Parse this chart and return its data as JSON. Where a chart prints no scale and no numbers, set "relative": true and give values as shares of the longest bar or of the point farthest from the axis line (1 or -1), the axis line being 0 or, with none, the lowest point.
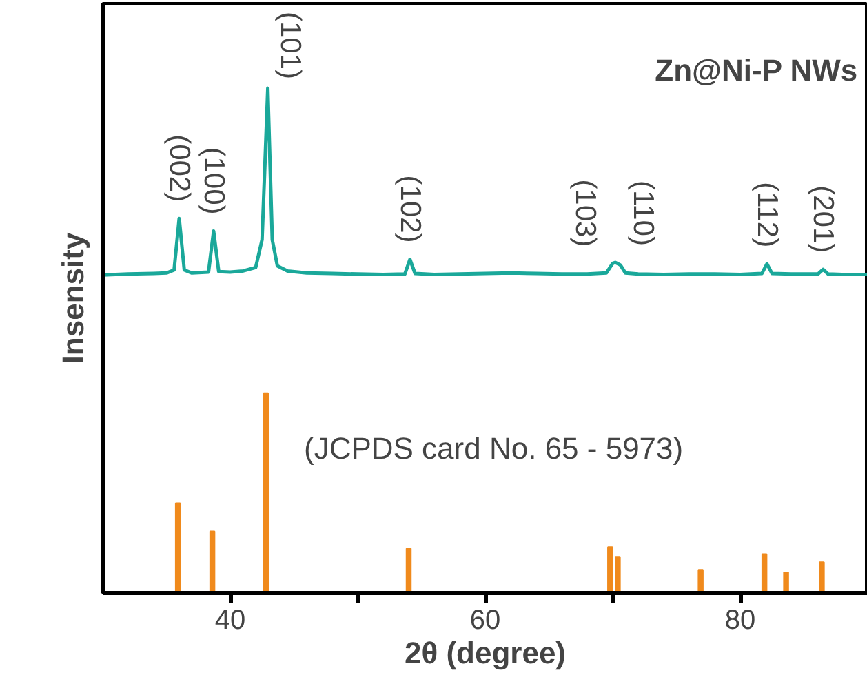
{
  "chart_data": {
    "type": "line",
    "title": "Zn@Ni-P NWs",
    "xlabel": "2θ (degree)",
    "ylabel": "Insensity",
    "relative": true,
    "xlim": [
      30,
      90
    ],
    "xticks": [
      40,
      {
        "value": 50,
        "label": null
      },
      60,
      {
        "value": 70,
        "label": null
      },
      80
    ],
    "grid": false,
    "tick_labels": "x",
    "series": [
      {
        "color": "#1aa89a",
        "x": [
          30,
          32,
          34,
          35,
          35.6,
          36.0,
          36.4,
          37,
          38.3,
          38.7,
          39.1,
          40,
          41,
          42.0,
          42.5,
          42.95,
          43.3,
          43.7,
          44.5,
          46,
          48,
          50,
          52,
          53.7,
          54.1,
          54.5,
          56,
          58,
          60,
          62,
          64,
          66,
          68,
          69.5,
          70.0,
          70.2,
          70.6,
          71.0,
          72,
          74,
          76,
          78,
          80,
          81.7,
          82.1,
          82.5,
          84,
          86.1,
          86.5,
          86.9,
          88,
          90
        ],
        "values": [
          0.63,
          0.632,
          0.633,
          0.634,
          0.64,
          0.742,
          0.64,
          0.634,
          0.636,
          0.717,
          0.637,
          0.636,
          0.638,
          0.645,
          0.7,
          1.0,
          0.7,
          0.648,
          0.638,
          0.634,
          0.633,
          0.632,
          0.631,
          0.632,
          0.661,
          0.633,
          0.631,
          0.632,
          0.633,
          0.634,
          0.633,
          0.632,
          0.632,
          0.634,
          0.653,
          0.655,
          0.65,
          0.634,
          0.632,
          0.631,
          0.632,
          0.632,
          0.631,
          0.633,
          0.652,
          0.633,
          0.632,
          0.632,
          0.641,
          0.632,
          0.631,
          0.631
        ]
      },
      {
        "type": "bar",
        "color": "#f08a1c",
        "x": [
          35.9,
          38.6,
          42.8,
          54.0,
          69.8,
          70.4,
          76.9,
          81.9,
          83.6,
          86.4
        ],
        "values": [
          0.178,
          0.122,
          0.396,
          0.088,
          0.091,
          0.072,
          0.046,
          0.077,
          0.041,
          0.061
        ]
      }
    ],
    "annotations": [
      {
        "text": "(002)",
        "x": 36.0,
        "y": 0.742
      },
      {
        "text": "(100)",
        "x": 38.7,
        "y": 0.717
      },
      {
        "text": "(101)",
        "x": 42.95,
        "y": 1.0
      },
      {
        "text": "(102)",
        "x": 54.1,
        "y": 0.661
      },
      {
        "text": "(103)",
        "x": 70.0,
        "y": 0.653
      },
      {
        "text": "(110)",
        "x": 70.2,
        "y": 0.655
      },
      {
        "text": "(112)",
        "x": 82.1,
        "y": 0.652
      },
      {
        "text": "(201)",
        "x": 86.5,
        "y": 0.641
      },
      "(JCPDS card No. 65 - 5973)"
    ]
  }
}
